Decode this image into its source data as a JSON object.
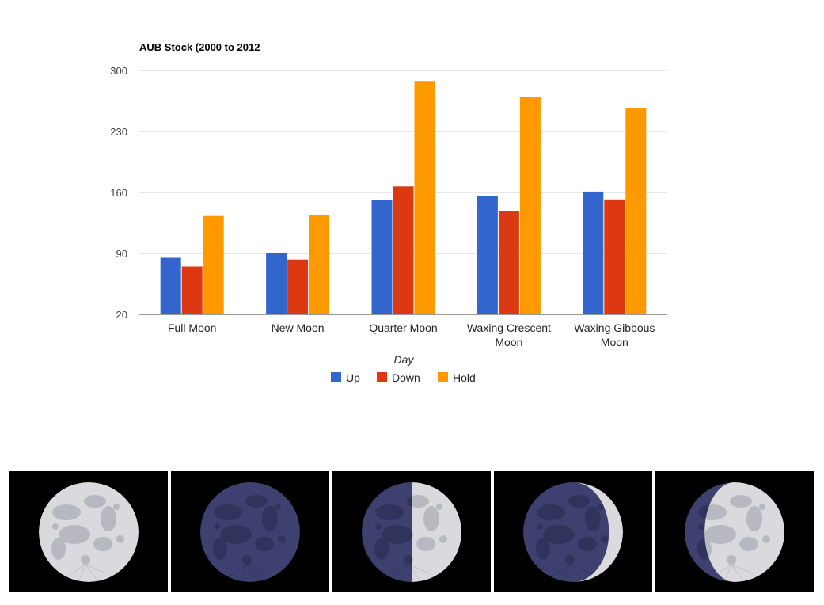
{
  "chart_data": {
    "type": "bar",
    "title": "AUB Stock (2000 to 2012",
    "xlabel": "Day",
    "ylabel": "",
    "categories": [
      [
        "Full Moon"
      ],
      [
        "New Moon"
      ],
      [
        "Quarter Moon"
      ],
      [
        "Waxing Crescent",
        "Moon"
      ],
      [
        "Waxing Gibbous",
        "Moon"
      ]
    ],
    "series": [
      {
        "name": "Up",
        "color": "#3366cc",
        "values": [
          85,
          90,
          151,
          156,
          161
        ]
      },
      {
        "name": "Down",
        "color": "#dc3912",
        "values": [
          75,
          83,
          167,
          139,
          152
        ]
      },
      {
        "name": "Hold",
        "color": "#ff9900",
        "values": [
          133,
          134,
          288,
          270,
          257
        ]
      }
    ],
    "ylim": [
      20,
      300
    ],
    "yticks": [
      20,
      90,
      160,
      230,
      300
    ],
    "grid": true,
    "legend": "bottom"
  },
  "moon_phases": [
    {
      "icon": "full-moon-icon"
    },
    {
      "icon": "new-moon-icon"
    },
    {
      "icon": "quarter-moon-icon"
    },
    {
      "icon": "waxing-crescent-moon-icon"
    },
    {
      "icon": "waxing-gibbous-moon-icon"
    }
  ]
}
